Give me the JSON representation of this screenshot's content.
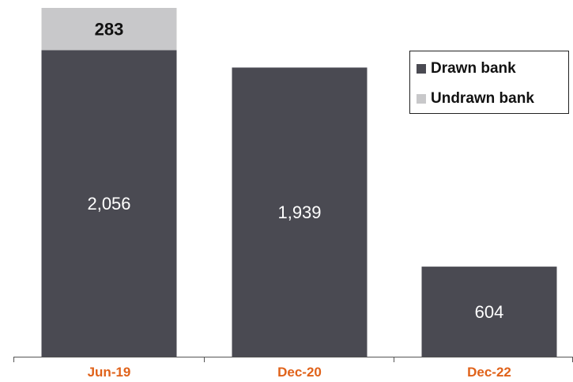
{
  "chart_data": {
    "type": "bar",
    "stacked": true,
    "categories": [
      "Jun-19",
      "Dec-20",
      "Dec-22"
    ],
    "series": [
      {
        "name": "Drawn bank",
        "values": [
          2056,
          1939,
          604
        ],
        "labels": [
          "2,056",
          "1,939",
          "604"
        ],
        "color": "#4a4a52"
      },
      {
        "name": "Undrawn bank",
        "values": [
          283,
          0,
          0
        ],
        "labels": [
          "283",
          "",
          ""
        ],
        "color": "#c8c8ca"
      }
    ],
    "ylim": [
      0,
      2339
    ],
    "grid": false,
    "legend_position": "top-right",
    "category_label_color": "#e0621a"
  },
  "legend": {
    "drawn_label": "Drawn bank",
    "undrawn_label": "Undrawn bank"
  }
}
